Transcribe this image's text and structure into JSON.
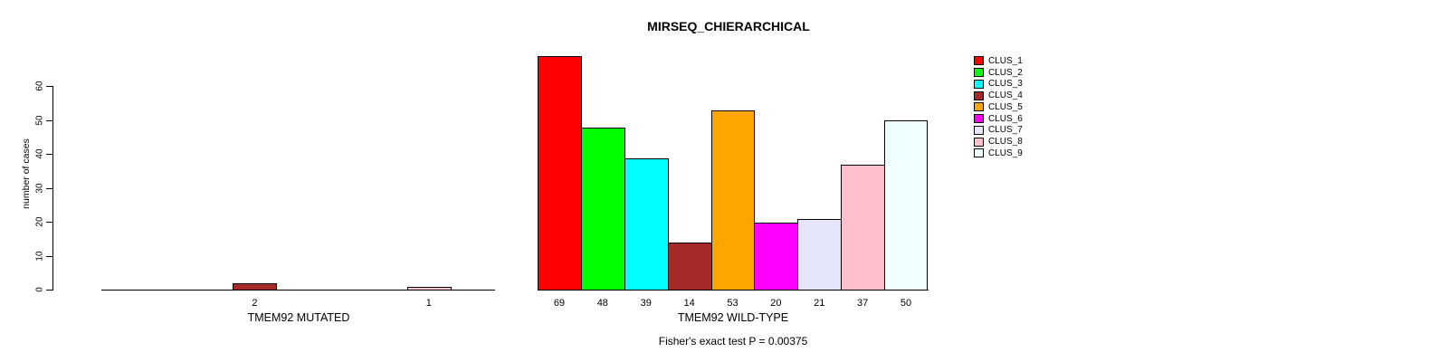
{
  "title": "MIRSEQ_CHIERARCHICAL",
  "footer": "Fisher's exact test P = 0.00375",
  "y_axis": {
    "label": "number of cases",
    "ticks": [
      "0",
      "10",
      "20",
      "30",
      "40",
      "50",
      "60"
    ]
  },
  "legend": {
    "entries": [
      {
        "label": "CLUS_1",
        "color": "#FF0000"
      },
      {
        "label": "CLUS_2",
        "color": "#00FF00"
      },
      {
        "label": "CLUS_3",
        "color": "#00FFFF"
      },
      {
        "label": "CLUS_4",
        "color": "#A52A2A"
      },
      {
        "label": "CLUS_5",
        "color": "#FFA500"
      },
      {
        "label": "CLUS_6",
        "color": "#FF00FF"
      },
      {
        "label": "CLUS_7",
        "color": "#E6E6FA"
      },
      {
        "label": "CLUS_8",
        "color": "#FFC0CB"
      },
      {
        "label": "CLUS_9",
        "color": "#F0FFFF"
      }
    ]
  },
  "chart_data": {
    "type": "bar",
    "title": "MIRSEQ_CHIERARCHICAL",
    "ylabel": "number of cases",
    "xlabel": "",
    "ylim": [
      0,
      70
    ],
    "yticks": [
      0,
      10,
      20,
      30,
      40,
      50,
      60
    ],
    "grid": false,
    "legend_position": "right",
    "categories": [
      "CLUS_1",
      "CLUS_2",
      "CLUS_3",
      "CLUS_4",
      "CLUS_5",
      "CLUS_6",
      "CLUS_7",
      "CLUS_8",
      "CLUS_9"
    ],
    "colors": [
      "#FF0000",
      "#00FF00",
      "#00FFFF",
      "#A52A2A",
      "#FFA500",
      "#FF00FF",
      "#E6E6FA",
      "#FFC0CB",
      "#F0FFFF"
    ],
    "groups": [
      {
        "label": "TMEM92 MUTATED",
        "values": [
          0,
          0,
          0,
          2,
          0,
          0,
          0,
          1,
          0
        ],
        "bar_labels": [
          "",
          "",
          "",
          "2",
          "",
          "",
          "",
          "1",
          ""
        ]
      },
      {
        "label": "TMEM92 WILD-TYPE",
        "values": [
          69,
          48,
          39,
          14,
          53,
          20,
          21,
          37,
          50
        ],
        "bar_labels": [
          "69",
          "48",
          "39",
          "14",
          "53",
          "20",
          "21",
          "37",
          "50"
        ]
      }
    ],
    "annotation": "Fisher's exact test P = 0.00375"
  }
}
